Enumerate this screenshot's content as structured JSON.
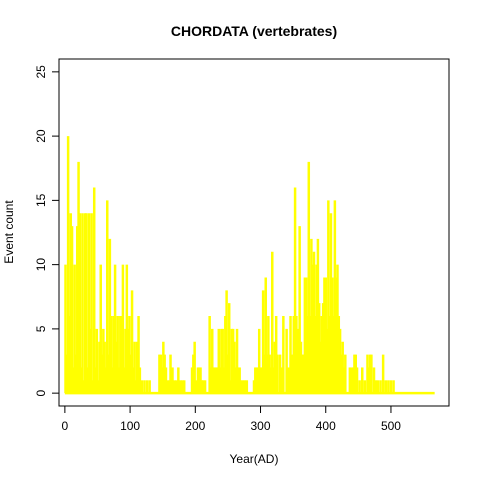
{
  "chart_data": {
    "type": "bar",
    "title": "CHORDATA (vertebrates)",
    "xlabel": "Year(AD)",
    "ylabel": "Event count",
    "xlim": [
      -9,
      589
    ],
    "ylim": [
      -1,
      26
    ],
    "x_ticks": [
      0,
      100,
      200,
      300,
      400,
      500
    ],
    "y_ticks": [
      0,
      5,
      10,
      15,
      20,
      25
    ],
    "grid": false,
    "bar_color": "#FFFF00",
    "points": [
      [
        1,
        10
      ],
      [
        3,
        3
      ],
      [
        5,
        20
      ],
      [
        7,
        6
      ],
      [
        9,
        14
      ],
      [
        11,
        13
      ],
      [
        13,
        2
      ],
      [
        15,
        10
      ],
      [
        17,
        3
      ],
      [
        19,
        13
      ],
      [
        21,
        18
      ],
      [
        23,
        14
      ],
      [
        25,
        2
      ],
      [
        27,
        14
      ],
      [
        29,
        1
      ],
      [
        31,
        14
      ],
      [
        33,
        14
      ],
      [
        35,
        2
      ],
      [
        37,
        14
      ],
      [
        39,
        5
      ],
      [
        41,
        14
      ],
      [
        43,
        1
      ],
      [
        45,
        16
      ],
      [
        47,
        2
      ],
      [
        49,
        5
      ],
      [
        51,
        1
      ],
      [
        53,
        4
      ],
      [
        55,
        10
      ],
      [
        57,
        3
      ],
      [
        59,
        5
      ],
      [
        61,
        4
      ],
      [
        63,
        2
      ],
      [
        65,
        15
      ],
      [
        67,
        3
      ],
      [
        69,
        12
      ],
      [
        71,
        6
      ],
      [
        73,
        2
      ],
      [
        75,
        6
      ],
      [
        77,
        10
      ],
      [
        79,
        4
      ],
      [
        81,
        6
      ],
      [
        83,
        2
      ],
      [
        85,
        6
      ],
      [
        87,
        6
      ],
      [
        89,
        10
      ],
      [
        91,
        2
      ],
      [
        93,
        5
      ],
      [
        95,
        10
      ],
      [
        97,
        5
      ],
      [
        99,
        6
      ],
      [
        101,
        3
      ],
      [
        103,
        8
      ],
      [
        105,
        2
      ],
      [
        107,
        4
      ],
      [
        109,
        1
      ],
      [
        111,
        4
      ],
      [
        113,
        6
      ],
      [
        115,
        2
      ],
      [
        118,
        1
      ],
      [
        122,
        1
      ],
      [
        126,
        1
      ],
      [
        130,
        1
      ],
      [
        145,
        3
      ],
      [
        147,
        3
      ],
      [
        149,
        2
      ],
      [
        151,
        4
      ],
      [
        153,
        3
      ],
      [
        155,
        2
      ],
      [
        157,
        1
      ],
      [
        160,
        1
      ],
      [
        162,
        3
      ],
      [
        165,
        2
      ],
      [
        168,
        1
      ],
      [
        171,
        1
      ],
      [
        174,
        2
      ],
      [
        177,
        1
      ],
      [
        180,
        1
      ],
      [
        183,
        1
      ],
      [
        195,
        2
      ],
      [
        197,
        3
      ],
      [
        199,
        4
      ],
      [
        201,
        1
      ],
      [
        204,
        2
      ],
      [
        206,
        2
      ],
      [
        208,
        2
      ],
      [
        210,
        1
      ],
      [
        212,
        1
      ],
      [
        215,
        1
      ],
      [
        222,
        6
      ],
      [
        224,
        2
      ],
      [
        226,
        5
      ],
      [
        228,
        2
      ],
      [
        230,
        2
      ],
      [
        232,
        2
      ],
      [
        234,
        2
      ],
      [
        236,
        5
      ],
      [
        238,
        2
      ],
      [
        240,
        5
      ],
      [
        242,
        5
      ],
      [
        244,
        2
      ],
      [
        246,
        6
      ],
      [
        248,
        8
      ],
      [
        250,
        3
      ],
      [
        252,
        7
      ],
      [
        254,
        1
      ],
      [
        256,
        5
      ],
      [
        258,
        5
      ],
      [
        260,
        4
      ],
      [
        262,
        2
      ],
      [
        264,
        5
      ],
      [
        266,
        2
      ],
      [
        268,
        2
      ],
      [
        270,
        1
      ],
      [
        273,
        1
      ],
      [
        276,
        1
      ],
      [
        279,
        1
      ],
      [
        290,
        1
      ],
      [
        292,
        2
      ],
      [
        294,
        2
      ],
      [
        296,
        2
      ],
      [
        298,
        5
      ],
      [
        300,
        2
      ],
      [
        302,
        2
      ],
      [
        304,
        8
      ],
      [
        306,
        3
      ],
      [
        308,
        9
      ],
      [
        310,
        3
      ],
      [
        312,
        6
      ],
      [
        314,
        3
      ],
      [
        316,
        2
      ],
      [
        318,
        11
      ],
      [
        320,
        2
      ],
      [
        322,
        4
      ],
      [
        324,
        6
      ],
      [
        326,
        3
      ],
      [
        330,
        3
      ],
      [
        333,
        2
      ],
      [
        335,
        6
      ],
      [
        340,
        5
      ],
      [
        343,
        2
      ],
      [
        346,
        6
      ],
      [
        349,
        3
      ],
      [
        351,
        6
      ],
      [
        353,
        16
      ],
      [
        355,
        6
      ],
      [
        357,
        5
      ],
      [
        360,
        13
      ],
      [
        362,
        4
      ],
      [
        364,
        3
      ],
      [
        366,
        3
      ],
      [
        368,
        9
      ],
      [
        370,
        9
      ],
      [
        372,
        6
      ],
      [
        374,
        18
      ],
      [
        376,
        6
      ],
      [
        378,
        12
      ],
      [
        380,
        10
      ],
      [
        382,
        11
      ],
      [
        384,
        6
      ],
      [
        386,
        10
      ],
      [
        388,
        12
      ],
      [
        390,
        7
      ],
      [
        392,
        4
      ],
      [
        394,
        6
      ],
      [
        396,
        7
      ],
      [
        398,
        9
      ],
      [
        400,
        9
      ],
      [
        402,
        5
      ],
      [
        404,
        15
      ],
      [
        406,
        6
      ],
      [
        408,
        14
      ],
      [
        410,
        9
      ],
      [
        412,
        6
      ],
      [
        414,
        15
      ],
      [
        416,
        9
      ],
      [
        418,
        10
      ],
      [
        420,
        6
      ],
      [
        422,
        5
      ],
      [
        424,
        3
      ],
      [
        426,
        4
      ],
      [
        428,
        2
      ],
      [
        430,
        3
      ],
      [
        437,
        2
      ],
      [
        440,
        2
      ],
      [
        442,
        2
      ],
      [
        444,
        3
      ],
      [
        446,
        3
      ],
      [
        448,
        2
      ],
      [
        452,
        1
      ],
      [
        456,
        2
      ],
      [
        460,
        1
      ],
      [
        464,
        3
      ],
      [
        466,
        2
      ],
      [
        468,
        3
      ],
      [
        470,
        3
      ],
      [
        474,
        2
      ],
      [
        477,
        1
      ],
      [
        480,
        1
      ],
      [
        484,
        1
      ],
      [
        488,
        3
      ],
      [
        492,
        1
      ],
      [
        496,
        1
      ],
      [
        500,
        1
      ],
      [
        504,
        1
      ]
    ],
    "baseline_range": [
      0,
      567
    ]
  }
}
